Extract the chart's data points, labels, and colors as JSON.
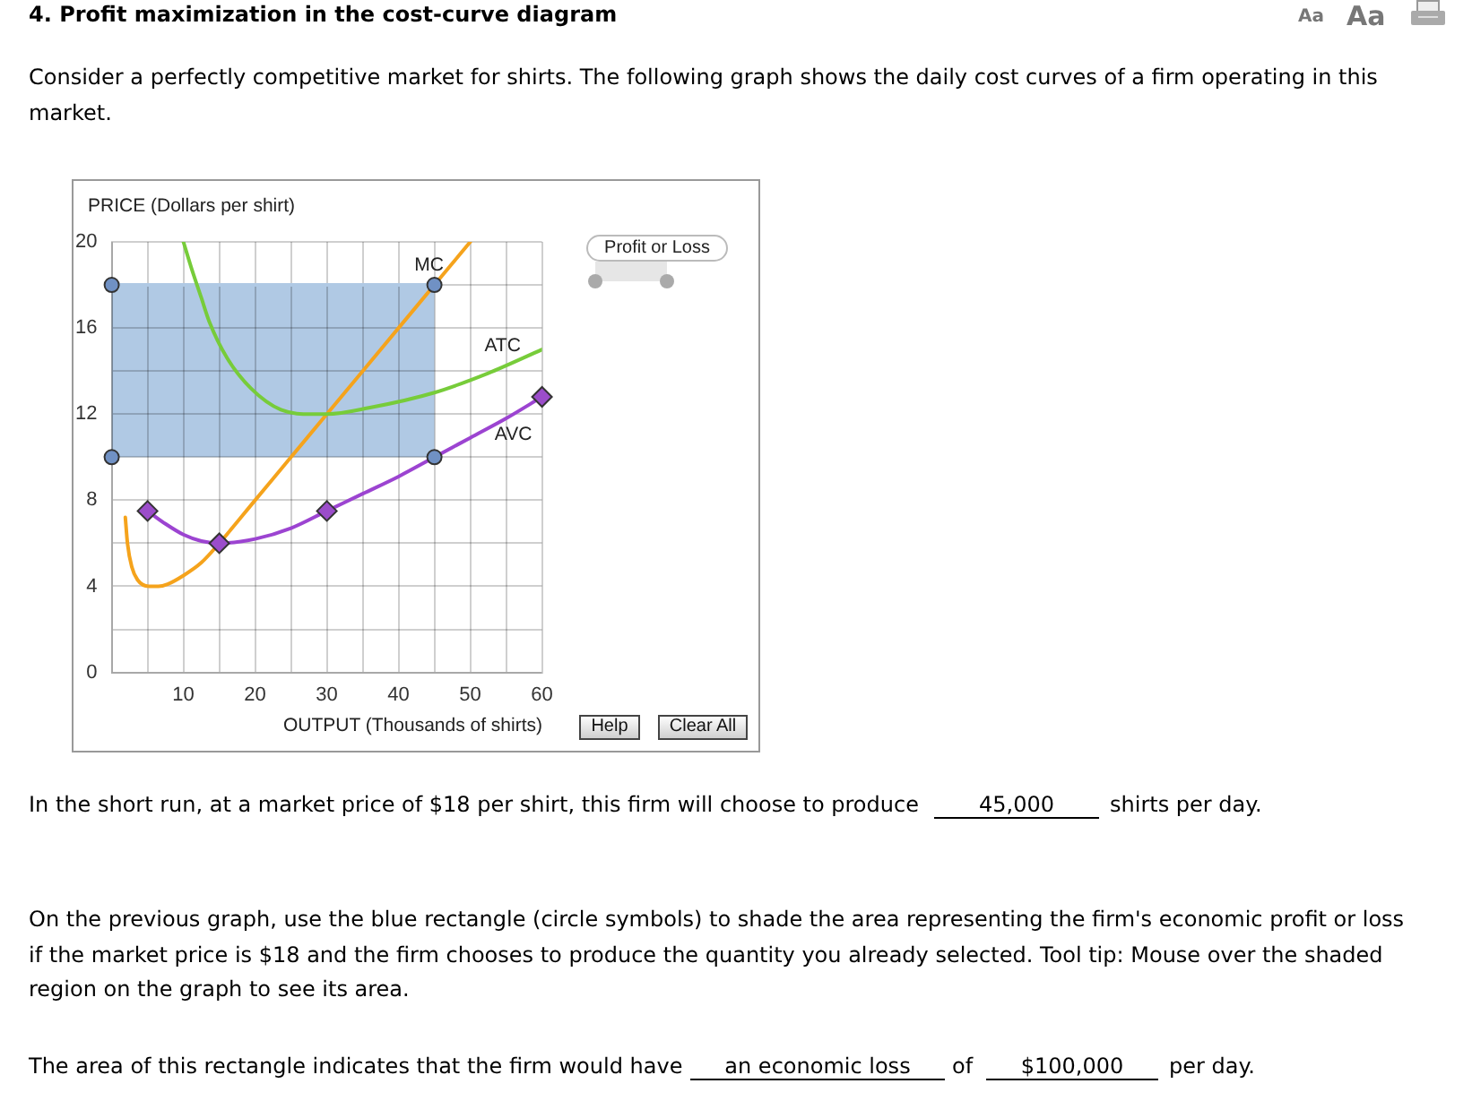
{
  "chart_data": {
    "type": "line",
    "title": "4. Profit maximization in the cost-curve diagram",
    "subtitle": "Consider a perfectly competitive market for shirts. The following graph shows the daily cost curves of a firm operating in this market.",
    "xlabel": "OUTPUT (Thousands of shirts)",
    "ylabel": "PRICE (Dollars per shirt)",
    "series": [
      {
        "type": "line",
        "color": "#b0c9e4",
        "x": [
          0,
          45
        ],
        "values": [
          18,
          18
        ],
        "lower": [
          10,
          10
        ],
        "upper": [
          18,
          18
        ]
      },
      {
        "name": "MC",
        "color": "#f5a31c",
        "x": [
          1.9,
          2.2,
          2.8,
          3.6,
          5.2,
          6.5,
          7.8,
          10,
          12.5,
          15,
          20,
          25,
          30,
          35,
          40,
          45,
          50
        ],
        "values": [
          7.2,
          6.0,
          4.9,
          4.3,
          4.0,
          4.0,
          4.1,
          4.5,
          5.1,
          6,
          8,
          10,
          12,
          14,
          16,
          18,
          20
        ]
      },
      {
        "name": "ATC",
        "color": "#77cc3a",
        "x": [
          10,
          11.1,
          12.5,
          13.6,
          16.1,
          19.4,
          23.6,
          28,
          30,
          36,
          45,
          52.5,
          60
        ],
        "values": [
          20,
          18.8,
          17.4,
          16.3,
          14.6,
          13.2,
          12.2,
          12.0,
          12,
          12.3,
          13.0,
          13.9,
          15
        ]
      },
      {
        "name": "AVC",
        "color": "#9c44d1",
        "x": [
          5,
          7.5,
          10,
          12.5,
          15,
          20,
          25,
          30,
          35,
          40,
          45,
          50,
          55,
          60
        ],
        "values": [
          7.5,
          6.9,
          6.4,
          6.1,
          6,
          6.2,
          6.7,
          7.5,
          8.3,
          9.1,
          10,
          10.9,
          11.8,
          12.8
        ]
      },
      {
        "type": "scatter",
        "color": "#7091c4",
        "marker": "circle",
        "x": [
          0,
          45,
          45,
          0
        ],
        "values": [
          18,
          18,
          10,
          10
        ]
      },
      {
        "type": "scatter",
        "color": "#9b4dca",
        "marker": "diamond",
        "x": [
          5,
          15,
          30,
          60
        ],
        "values": [
          7.5,
          6,
          7.5,
          12.8
        ]
      }
    ],
    "xlim": [
      0,
      60
    ],
    "ylim": [
      0,
      20
    ],
    "xticks": [
      {
        "value": 0,
        "label": null
      },
      {
        "value": 5,
        "label": null
      },
      10,
      {
        "value": 15,
        "label": null
      },
      20,
      {
        "value": 25,
        "label": null
      },
      30,
      {
        "value": 35,
        "label": null
      },
      40,
      {
        "value": 45,
        "label": null
      },
      50,
      {
        "value": 55,
        "label": null
      },
      60
    ],
    "yticks": [
      0,
      {
        "value": 2,
        "label": null
      },
      4,
      {
        "value": 6,
        "label": null
      },
      8,
      {
        "value": 10,
        "label": null
      },
      12,
      {
        "value": 14,
        "label": null
      },
      16,
      {
        "value": 18,
        "label": null
      },
      20
    ],
    "grid": true,
    "annotations": [
      "Profit or Loss",
      "Help",
      "Clear All",
      "Aa",
      "Aa",
      "In the short run, at a market price of $18 per shirt, this firm will choose to produce",
      "45,000",
      "shirts per day.",
      "On the previous graph, use the blue rectangle (circle symbols) to shade the area representing the firm's economic profit or loss if the market price is $18 and the firm chooses to produce the quantity you already selected. Tool tip: Mouse over the shaded region on the graph to see its area.",
      "The area of this rectangle indicates that the firm would have",
      "an economic loss",
      "of",
      "$100,000",
      "per day."
    ]
  }
}
